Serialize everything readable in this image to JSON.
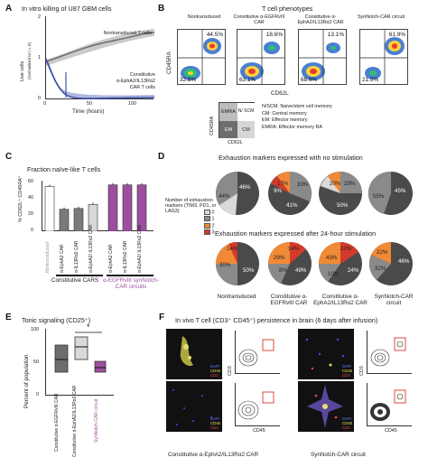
{
  "panels": {
    "A": {
      "label": "A",
      "title": "In vitro killing of U87 GBM cells",
      "ylabel": "Live cells",
      "ylabel2": "(normalized to t = 0)",
      "xlabel": "Time (hours)",
      "xticks": [
        "0",
        "50",
        "100"
      ],
      "yticks": [
        "0",
        "1",
        "2"
      ],
      "series_top": "Nontransduced T cells",
      "series_bottom_1": "Constitutive",
      "series_bottom_2": "α-EphA2/IL13Rα2",
      "series_bottom_3": "CAR T cells"
    },
    "B": {
      "label": "B",
      "title": "T cell phenotypes",
      "ylabel": "CD45RA",
      "xlabel": "CD62L",
      "columns": [
        {
          "label": "Nontransduced",
          "tr": "44.5%",
          "bl": "32.5%"
        },
        {
          "label": "Constitutive α-EGFRvIII CAR",
          "tr": "18.6%",
          "bl": "63.1%"
        },
        {
          "label": "Constitutive α-EphA2/IL13Rα2 CAR",
          "tr": "13.1%",
          "bl": "68.6%"
        },
        {
          "label": "SynNotch-CAR circuit",
          "tr": "61.9%",
          "bl": "21.5%"
        }
      ],
      "key_cells": [
        "EMRA",
        "N/ SCM",
        "EM",
        "CM"
      ],
      "key_ylabel": "CD45RA",
      "key_xlabel": "CD62L",
      "key_legend": [
        "N/SCM: Naive/stem cell memory",
        "CM: Central memory",
        "EM: Effector memory",
        "EMRA: Effector memory RA"
      ]
    },
    "C": {
      "label": "C",
      "title": "Fraction naïve-like T cells",
      "ylabel": "% CD62L⁺ CD45RA⁺",
      "yticks": [
        "0",
        "20",
        "40",
        "60"
      ],
      "group1": "Constitutive CARS",
      "group2": "α-EGFRvIII synNotch- CAR circuits",
      "bar_labels": [
        "Nontransduced",
        "α-EphA2 CAR",
        "α-IL13Rα2 CAR",
        "α-EphA2/ IL13Rα2 CAR",
        "α-EphA2 CAR",
        "α-IL13Rα2 CAR",
        "α-EphA2/ IL13Rα2 CAR"
      ]
    },
    "D": {
      "label": "D",
      "title1": "Exhaustion markers expressed with no stimulation",
      "title2": "Exhaustion markers expressed after 24-hour stimulation",
      "legend_title": "Number of exhaustion markers (TIM3, PD1, or LAG3)",
      "legend_items": [
        "0",
        "1",
        "2",
        "3"
      ],
      "columns": [
        "Nontransduced",
        "Constitutive α-EGFRvIII CAR",
        "Constitutive α-EphA2/IL13Rα2 CAR",
        "SynNotch-CAR circuit"
      ],
      "row1": [
        {
          "a": "46%",
          "b": "44%"
        },
        {
          "a": "33%",
          "b": "17%",
          "c": "9%",
          "d": "41%"
        },
        {
          "a": "29%",
          "b": "20%",
          "c": "50%"
        },
        {
          "a": "45%",
          "b": "55%"
        }
      ],
      "row2": [
        {
          "a": "14%",
          "b": "30%",
          "c": "50%"
        },
        {
          "a": "14%",
          "b": "29%",
          "c": "8%",
          "d": "49%"
        },
        {
          "a": "43%",
          "b": "22%",
          "c": "24%",
          "d": "10%"
        },
        {
          "a": "46%",
          "b": "22%",
          "c": "32%"
        }
      ]
    },
    "E": {
      "label": "E",
      "title": "Tonic signaling (CD25⁺)",
      "ylabel": "Percent of population",
      "yticks": [
        "0",
        "50",
        "100"
      ],
      "star": "*",
      "box_labels": [
        "Constitutive α-EGFRvIII CAR",
        "Constitutive α-EphA2/IL13Rα2 CAR",
        "SynNotch-CAR circuit"
      ]
    },
    "F": {
      "label": "F",
      "title": "In vivo T cell (CD3⁺ CD45⁺) persistence in brain (6 days after infusion)",
      "axis_y": "CD3",
      "axis_x": "CD45",
      "legend": [
        "DAPI",
        "CD45",
        "CD3"
      ],
      "caption_left": "Constitutive α-EphA2/IL13Rα2 CAR",
      "caption_right": "SynNotch-CAR circuit"
    }
  },
  "colors": {
    "grey_bar": "#9b9b9b",
    "purple": "#9c4f9f",
    "blue_line": "#3e4fa8",
    "pie_0": "#8a8a8a",
    "pie_0_dark": "#4a4a4a",
    "pie_1": "#d9d9d9",
    "pie_2": "#f08a36",
    "pie_3": "#d43a2a"
  },
  "chart_data": [
    {
      "type": "bar",
      "title": "Fraction naïve-like T cells",
      "ylabel": "% CD62L+ CD45RA+",
      "categories": [
        "Nontransduced",
        "α-EphA2 CAR",
        "α-IL13Rα2 CAR",
        "α-EphA2/IL13Rα2 CAR",
        "synNotch α-EphA2 CAR",
        "synNotch α-IL13Rα2 CAR",
        "synNotch α-EphA2/IL13Rα2 CAR"
      ],
      "values": [
        55,
        27,
        28,
        33,
        57,
        57,
        57
      ],
      "ylim": [
        0,
        60
      ]
    },
    {
      "type": "line",
      "title": "In vitro killing of U87 GBM cells",
      "xlabel": "Time (hours)",
      "ylabel": "Live cells",
      "xlim": [
        0,
        120
      ],
      "ylim": [
        0,
        2
      ],
      "series": [
        {
          "name": "Nontransduced T cells",
          "x": [
            0,
            10,
            20,
            40,
            60,
            80,
            100,
            120
          ],
          "y": [
            1.0,
            1.1,
            1.2,
            1.4,
            1.6,
            1.75,
            1.85,
            1.9
          ]
        },
        {
          "name": "Constitutive α-EphA2/IL13Rα2 CAR T cells",
          "x": [
            0,
            5,
            10,
            20,
            40,
            60,
            80,
            100,
            120
          ],
          "y": [
            1.0,
            0.6,
            0.3,
            0.1,
            0.05,
            0.03,
            0.02,
            0.02,
            0.02
          ]
        }
      ]
    }
  ]
}
